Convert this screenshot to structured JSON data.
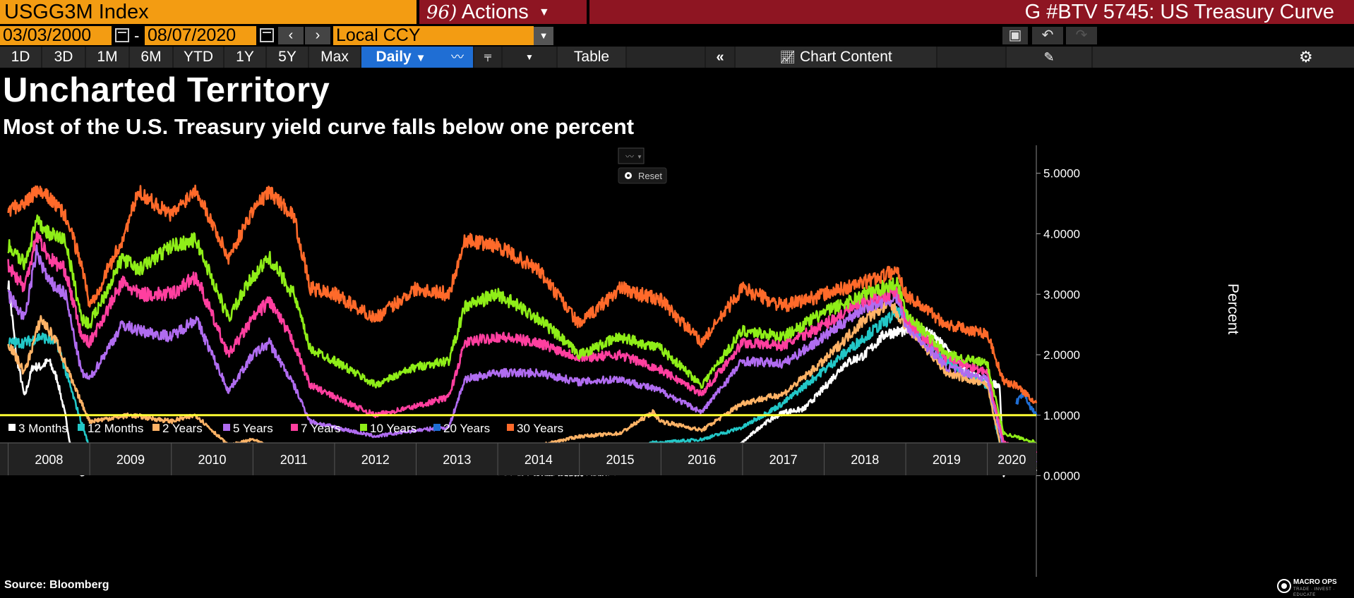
{
  "header": {
    "ticker": "USGG3M Index",
    "actions_num": "96)",
    "actions_label": "Actions",
    "chart_id": "G #BTV 5745: US Treasury Curve"
  },
  "range": {
    "start": "03/03/2000",
    "separator": "-",
    "end": "08/07/2020",
    "currency": "Local CCY"
  },
  "toolbar": {
    "periods": [
      "1D",
      "3D",
      "1M",
      "6M",
      "YTD",
      "1Y",
      "5Y",
      "Max"
    ],
    "frequency": "Daily",
    "table_label": "Table",
    "chart_content_label": "Chart Content"
  },
  "overlay": {
    "reset_label": "Reset"
  },
  "footer": {
    "source": "Source: Bloomberg",
    "logo_text": "MACRO OPS",
    "logo_sub": "TRADE · INVEST · EDUCATE"
  },
  "colors": {
    "ticker_bg": "#f39c12",
    "header_bg": "#8e1522",
    "selected_bg": "#1f6ed4",
    "threshold": "#ffff33"
  },
  "chart_data": {
    "type": "line",
    "title": "Uncharted Territory",
    "subtitle": "Most of the U.S. Treasury yield curve falls below one percent",
    "ylabel": "Percent",
    "ylim": [
      -0.6,
      5.3
    ],
    "yticks": [
      0,
      1,
      2,
      3,
      4,
      5
    ],
    "ytick_labels": [
      "0.0000",
      "1.0000",
      "2.0000",
      "3.0000",
      "4.0000",
      "5.0000"
    ],
    "xlim": [
      2007.9,
      2020.6
    ],
    "xticks": [
      "2008",
      "2009",
      "2010",
      "2011",
      "2012",
      "2013",
      "2014",
      "2015",
      "2016",
      "2017",
      "2018",
      "2019",
      "2020"
    ],
    "grid": false,
    "legend_position": "bottom-left",
    "reference_line": {
      "y": 1.0,
      "color": "#ffff33"
    },
    "series": [
      {
        "name": "3 Months",
        "color": "#ffffff",
        "x": [
          2008.0,
          2008.1,
          2008.2,
          2008.3,
          2008.4,
          2008.5,
          2008.6,
          2008.7,
          2008.8,
          2008.9,
          2009.0,
          2009.5,
          2010.0,
          2010.5,
          2011.0,
          2011.5,
          2012.0,
          2013.0,
          2014.0,
          2015.0,
          2015.5,
          2015.9,
          2016.0,
          2016.5,
          2016.9,
          2017.0,
          2017.25,
          2017.5,
          2017.75,
          2018.0,
          2018.25,
          2018.5,
          2018.75,
          2019.0,
          2019.25,
          2019.5,
          2019.75,
          2020.0,
          2020.15,
          2020.2,
          2020.25,
          2020.4,
          2020.6
        ],
        "values": [
          3.2,
          2.0,
          1.3,
          1.8,
          1.8,
          1.9,
          1.6,
          1.0,
          0.2,
          0.0,
          0.1,
          0.18,
          0.1,
          0.15,
          0.14,
          0.05,
          0.05,
          0.06,
          0.04,
          0.02,
          0.04,
          0.25,
          0.3,
          0.35,
          0.45,
          0.55,
          0.85,
          1.05,
          1.1,
          1.45,
          1.85,
          2.0,
          2.35,
          2.4,
          2.4,
          2.1,
          1.7,
          1.55,
          1.5,
          0.0,
          0.1,
          0.12,
          0.1
        ]
      },
      {
        "name": "12 Months",
        "color": "#22c7c7",
        "x": [
          2008.0,
          2008.2,
          2008.4,
          2008.6,
          2008.8,
          2009.0,
          2009.5,
          2010.0,
          2010.5,
          2011.0,
          2011.5,
          2012.0,
          2013.0,
          2014.0,
          2014.5,
          2015.0,
          2015.5,
          2015.9,
          2016.0,
          2016.5,
          2017.0,
          2017.5,
          2018.0,
          2018.5,
          2018.9,
          2019.0,
          2019.5,
          2019.9,
          2020.0,
          2020.2,
          2020.3,
          2020.6
        ],
        "values": [
          2.2,
          2.2,
          2.3,
          2.2,
          1.3,
          0.45,
          0.4,
          0.35,
          0.3,
          0.28,
          0.15,
          0.12,
          0.13,
          0.12,
          0.1,
          0.25,
          0.3,
          0.55,
          0.55,
          0.6,
          0.8,
          1.2,
          1.75,
          2.3,
          2.7,
          2.6,
          1.9,
          1.55,
          1.5,
          0.2,
          0.15,
          0.13
        ]
      },
      {
        "name": "2 Years",
        "color": "#ffb366",
        "x": [
          2008.0,
          2008.2,
          2008.4,
          2008.6,
          2008.8,
          2009.0,
          2009.5,
          2010.0,
          2010.3,
          2010.7,
          2011.0,
          2011.5,
          2012.0,
          2013.0,
          2013.5,
          2014.0,
          2014.5,
          2015.0,
          2015.5,
          2015.9,
          2016.0,
          2016.5,
          2017.0,
          2017.5,
          2018.0,
          2018.5,
          2018.8,
          2019.0,
          2019.5,
          2020.0,
          2020.2,
          2020.6
        ],
        "values": [
          2.2,
          1.7,
          2.6,
          2.2,
          1.5,
          0.9,
          1.0,
          0.9,
          1.0,
          0.5,
          0.6,
          0.3,
          0.25,
          0.3,
          0.4,
          0.4,
          0.5,
          0.65,
          0.7,
          1.05,
          0.9,
          0.75,
          1.2,
          1.35,
          1.9,
          2.6,
          2.85,
          2.5,
          1.7,
          1.5,
          0.25,
          0.14
        ]
      },
      {
        "name": "5 Years",
        "color": "#b06cf0",
        "x": [
          2008.0,
          2008.2,
          2008.35,
          2008.5,
          2008.7,
          2008.9,
          2009.0,
          2009.4,
          2009.6,
          2010.0,
          2010.3,
          2010.7,
          2011.0,
          2011.2,
          2011.5,
          2011.7,
          2012.0,
          2012.5,
          2013.0,
          2013.4,
          2013.6,
          2014.0,
          2014.5,
          2015.0,
          2015.5,
          2016.0,
          2016.5,
          2017.0,
          2017.5,
          2018.0,
          2018.5,
          2018.9,
          2019.0,
          2019.5,
          2020.0,
          2020.2,
          2020.6
        ],
        "values": [
          3.0,
          2.6,
          3.7,
          3.2,
          3.0,
          1.7,
          1.6,
          2.5,
          2.4,
          2.3,
          2.6,
          1.4,
          2.0,
          2.2,
          1.5,
          0.9,
          0.8,
          0.65,
          0.75,
          0.8,
          1.6,
          1.7,
          1.7,
          1.55,
          1.6,
          1.4,
          1.05,
          1.9,
          1.85,
          2.3,
          2.8,
          2.95,
          2.5,
          1.8,
          1.6,
          0.45,
          0.22
        ]
      },
      {
        "name": "7 Years",
        "color": "#ff3f9f",
        "x": [
          2008.0,
          2008.2,
          2008.35,
          2008.5,
          2008.7,
          2008.9,
          2009.0,
          2009.4,
          2009.6,
          2010.0,
          2010.3,
          2010.7,
          2011.0,
          2011.2,
          2011.5,
          2011.7,
          2012.0,
          2012.5,
          2013.0,
          2013.4,
          2013.6,
          2014.0,
          2014.5,
          2015.0,
          2015.5,
          2016.0,
          2016.5,
          2017.0,
          2017.5,
          2018.0,
          2018.5,
          2018.9,
          2019.0,
          2019.5,
          2020.0,
          2020.2,
          2020.6
        ],
        "values": [
          3.5,
          3.1,
          4.0,
          3.6,
          3.4,
          2.3,
          2.2,
          3.2,
          3.0,
          3.0,
          3.3,
          2.0,
          2.6,
          2.9,
          2.2,
          1.5,
          1.3,
          1.0,
          1.15,
          1.3,
          2.2,
          2.3,
          2.2,
          1.95,
          2.0,
          1.75,
          1.35,
          2.2,
          2.15,
          2.5,
          2.9,
          3.05,
          2.6,
          1.95,
          1.7,
          0.55,
          0.38
        ]
      },
      {
        "name": "10 Years",
        "color": "#8fee18",
        "x": [
          2008.0,
          2008.2,
          2008.35,
          2008.5,
          2008.7,
          2008.9,
          2009.0,
          2009.4,
          2009.6,
          2010.0,
          2010.3,
          2010.7,
          2011.0,
          2011.2,
          2011.5,
          2011.7,
          2012.0,
          2012.5,
          2013.0,
          2013.4,
          2013.6,
          2014.0,
          2014.5,
          2015.0,
          2015.5,
          2016.0,
          2016.5,
          2017.0,
          2017.5,
          2018.0,
          2018.5,
          2018.9,
          2019.0,
          2019.5,
          2020.0,
          2020.2,
          2020.6
        ],
        "values": [
          3.8,
          3.5,
          4.2,
          4.0,
          3.9,
          2.6,
          2.5,
          3.6,
          3.4,
          3.8,
          3.9,
          2.6,
          3.3,
          3.6,
          3.0,
          2.1,
          1.9,
          1.5,
          1.8,
          1.9,
          2.8,
          3.0,
          2.6,
          2.0,
          2.3,
          2.1,
          1.5,
          2.4,
          2.3,
          2.7,
          3.0,
          3.2,
          2.7,
          2.0,
          1.85,
          0.7,
          0.55
        ]
      },
      {
        "name": "20 Years",
        "color": "#1f6ed4",
        "x": [
          2020.35,
          2020.45,
          2020.52,
          2020.6
        ],
        "values": [
          1.2,
          1.35,
          1.15,
          1.0
        ]
      },
      {
        "name": "30 Years",
        "color": "#ff6a2a",
        "x": [
          2008.0,
          2008.2,
          2008.35,
          2008.5,
          2008.7,
          2008.9,
          2009.0,
          2009.4,
          2009.6,
          2010.0,
          2010.3,
          2010.7,
          2011.0,
          2011.2,
          2011.5,
          2011.7,
          2012.0,
          2012.5,
          2013.0,
          2013.4,
          2013.6,
          2014.0,
          2014.5,
          2015.0,
          2015.5,
          2016.0,
          2016.5,
          2017.0,
          2017.5,
          2018.0,
          2018.5,
          2018.9,
          2019.0,
          2019.5,
          2020.0,
          2020.2,
          2020.35,
          2020.6
        ],
        "values": [
          4.4,
          4.5,
          4.7,
          4.6,
          4.3,
          3.5,
          2.8,
          3.9,
          4.7,
          4.3,
          4.75,
          3.6,
          4.4,
          4.7,
          4.3,
          3.1,
          3.0,
          2.6,
          3.1,
          3.0,
          3.9,
          3.8,
          3.4,
          2.5,
          3.1,
          2.9,
          2.2,
          3.1,
          2.8,
          3.0,
          3.2,
          3.4,
          3.0,
          2.5,
          2.35,
          1.55,
          1.5,
          1.2
        ]
      }
    ]
  }
}
